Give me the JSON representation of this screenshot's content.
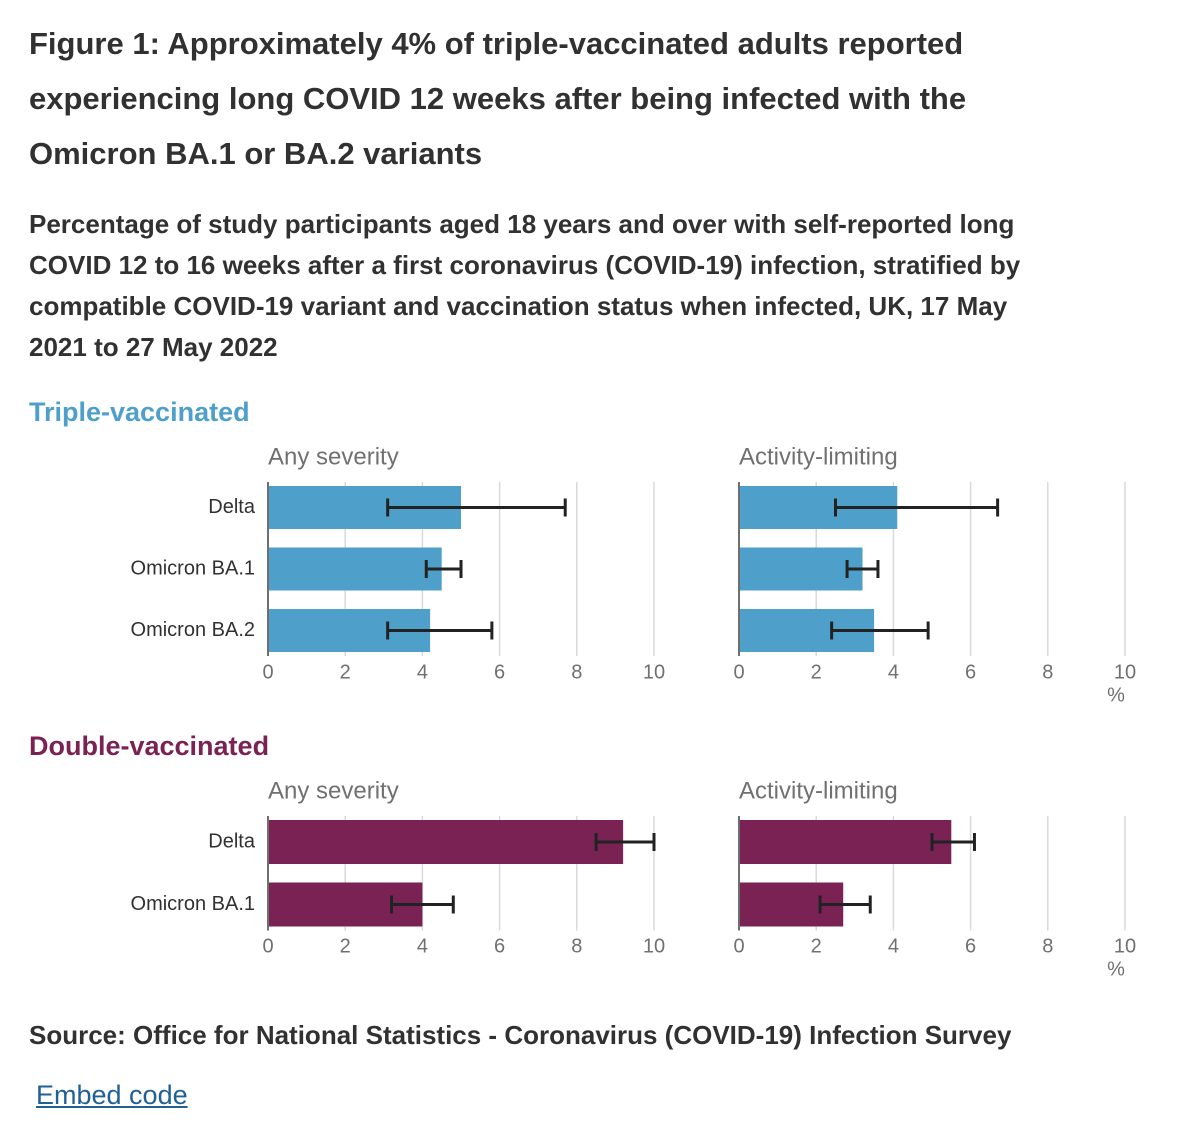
{
  "title": "Figure 1: Approximately 4% of triple-vaccinated adults reported experiencing long COVID 12 weeks after being infected with the Omicron BA.1 or BA.2 variants",
  "subtitle": "Percentage of study participants aged 18 years and over with self-reported long COVID 12 to 16 weeks after a first coronavirus (COVID-19) infection, stratified by compatible COVID-19 variant and vaccination status when infected, UK, 17 May 2021 to 27 May 2022",
  "source": "Source: Office for National Statistics - Coronavirus (COVID-19) Infection Survey",
  "embed_label": "Embed code",
  "colors": {
    "triple": "#4ea0cb",
    "double": "#7b2255",
    "text": "#323132",
    "axis": "#707070",
    "grid": "#d9d9d9",
    "error": "#222222",
    "link": "#206095"
  },
  "chart_data": [
    {
      "type": "bar",
      "orientation": "horizontal",
      "group": "Triple-vaccinated",
      "title": "Any severity",
      "categories": [
        "Delta",
        "Omicron BA.1",
        "Omicron BA.2"
      ],
      "values": [
        5.0,
        4.5,
        4.2
      ],
      "ci_lower": [
        3.1,
        4.1,
        3.1
      ],
      "ci_upper": [
        7.7,
        5.0,
        5.8
      ],
      "xlim": [
        0,
        10
      ],
      "ticks": [
        "0",
        "2",
        "4",
        "6",
        "8",
        "10"
      ],
      "unit": ""
    },
    {
      "type": "bar",
      "orientation": "horizontal",
      "group": "Triple-vaccinated",
      "title": "Activity-limiting",
      "categories": [
        "Delta",
        "Omicron BA.1",
        "Omicron BA.2"
      ],
      "values": [
        4.1,
        3.2,
        3.5
      ],
      "ci_lower": [
        2.5,
        2.8,
        2.4
      ],
      "ci_upper": [
        6.7,
        3.6,
        4.9
      ],
      "xlim": [
        0,
        10
      ],
      "ticks": [
        "0",
        "2",
        "4",
        "6",
        "8",
        "10"
      ],
      "unit": "%"
    },
    {
      "type": "bar",
      "orientation": "horizontal",
      "group": "Double-vaccinated",
      "title": "Any severity",
      "categories": [
        "Delta",
        "Omicron BA.1"
      ],
      "values": [
        9.2,
        4.0
      ],
      "ci_lower": [
        8.5,
        3.2
      ],
      "ci_upper": [
        10.0,
        4.8
      ],
      "xlim": [
        0,
        10
      ],
      "ticks": [
        "0",
        "2",
        "4",
        "6",
        "8",
        "10"
      ],
      "unit": ""
    },
    {
      "type": "bar",
      "orientation": "horizontal",
      "group": "Double-vaccinated",
      "title": "Activity-limiting",
      "categories": [
        "Delta",
        "Omicron BA.1"
      ],
      "values": [
        5.5,
        2.7
      ],
      "ci_lower": [
        5.0,
        2.1
      ],
      "ci_upper": [
        6.1,
        3.4
      ],
      "xlim": [
        0,
        10
      ],
      "ticks": [
        "0",
        "2",
        "4",
        "6",
        "8",
        "10"
      ],
      "unit": "%"
    }
  ]
}
